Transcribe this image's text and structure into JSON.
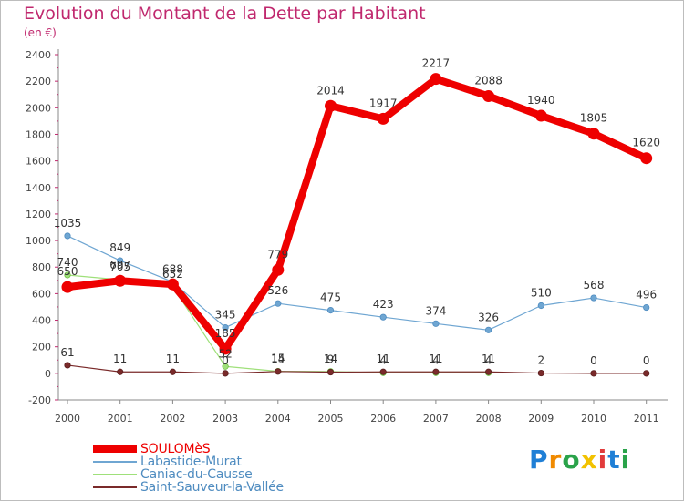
{
  "title": "Evolution du Montant de la Dette par Habitant",
  "subtitle": "(en €)",
  "brand": {
    "letters": [
      "P",
      "r",
      "o",
      "x",
      "i",
      "t",
      "i"
    ],
    "colors": [
      "#1f7fd6",
      "#f08a00",
      "#2aa34a",
      "#f2c200",
      "#e23b3b",
      "#1f7fd6",
      "#2aa34a"
    ]
  },
  "chart_data": {
    "type": "line",
    "x": [
      "2000",
      "2001",
      "2002",
      "2003",
      "2004",
      "2005",
      "2006",
      "2007",
      "2008",
      "2009",
      "2010",
      "2011"
    ],
    "ylim": [
      -200,
      2400
    ],
    "yticks": [
      -200,
      0,
      200,
      400,
      600,
      800,
      1000,
      1200,
      1400,
      1600,
      1800,
      2000,
      2200,
      2400
    ],
    "grid": false,
    "legend_position": "bottom-left",
    "series": [
      {
        "name": "SOULOMèS",
        "color": "#ee0000",
        "values": [
          650,
          697,
          670,
          185,
          779,
          2014,
          1917,
          2217,
          2088,
          1940,
          1805,
          1620
        ],
        "labels": [
          "650",
          "697",
          "",
          "185",
          "779",
          "2014",
          "1917",
          "2217",
          "2088",
          "1940",
          "1805",
          "1620"
        ]
      },
      {
        "name": "Labastide-Murat",
        "color": "#6fa6d2",
        "values": [
          1035,
          849,
          688,
          345,
          526,
          475,
          423,
          374,
          326,
          510,
          568,
          496
        ],
        "labels": [
          "1035",
          "849",
          "688",
          "345",
          "526",
          "475",
          "423",
          "374",
          "326",
          "510",
          "568",
          "496"
        ]
      },
      {
        "name": "Caniac-du-Causse",
        "color": "#9fe07a",
        "values": [
          740,
          705,
          652,
          52,
          15,
          14,
          4,
          4,
          4,
          null,
          null,
          null
        ],
        "labels": [
          "740",
          "705",
          "652",
          "52",
          "15",
          "14",
          "4",
          "4",
          "4",
          "",
          "",
          ""
        ]
      },
      {
        "name": "Saint-Sauveur-la-Vallée",
        "color": "#7a2a2a",
        "values": [
          61,
          11,
          11,
          0,
          14,
          9,
          11,
          11,
          11,
          2,
          0,
          0
        ],
        "labels": [
          "61",
          "11",
          "11",
          "0",
          "14",
          "9",
          "11",
          "11",
          "11",
          "2",
          "0",
          "0"
        ]
      }
    ]
  }
}
